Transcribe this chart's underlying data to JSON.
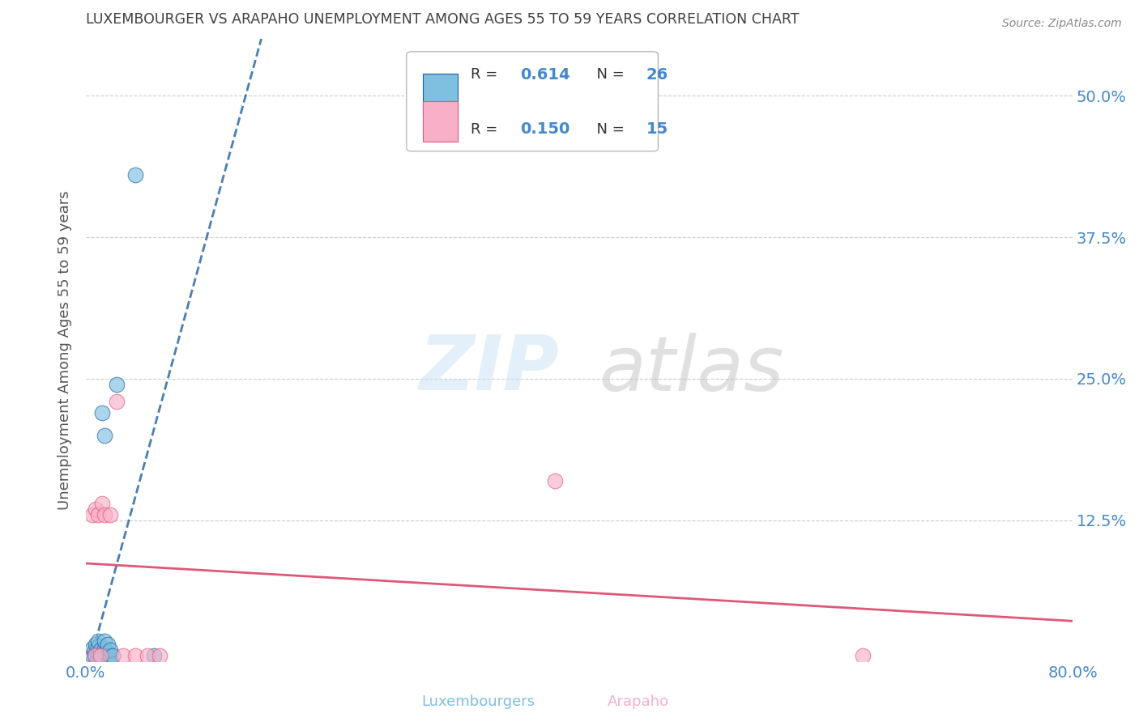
{
  "title": "LUXEMBOURGER VS ARAPAHO UNEMPLOYMENT AMONG AGES 55 TO 59 YEARS CORRELATION CHART",
  "source": "Source: ZipAtlas.com",
  "xlabel_label": "Luxembourgers",
  "xlabel2_label": "Arapaho",
  "ylabel": "Unemployment Among Ages 55 to 59 years",
  "xlim": [
    0.0,
    0.8
  ],
  "ylim": [
    0.0,
    0.55
  ],
  "xtick_vals": [
    0.0,
    0.8
  ],
  "xticklabels": [
    "0.0%",
    "80.0%"
  ],
  "ytick_vals": [
    0.125,
    0.25,
    0.375,
    0.5
  ],
  "yticklabels": [
    "12.5%",
    "25.0%",
    "37.5%",
    "50.0%"
  ],
  "blue_color": "#7fbfe0",
  "pink_color": "#f8b0c8",
  "trendline_blue": "#1a5fa0",
  "trendline_pink": "#e05878",
  "bg_color": "#ffffff",
  "title_color": "#404040",
  "source_color": "#888888",
  "axis_color": "#4488cc",
  "grid_color": "#cccccc",
  "legend_r_color": "#4488cc",
  "legend_text_color": "#333333",
  "blue_scatter_x": [
    0.005,
    0.005,
    0.007,
    0.007,
    0.008,
    0.008,
    0.01,
    0.01,
    0.01,
    0.012,
    0.012,
    0.013,
    0.013,
    0.015,
    0.015,
    0.015,
    0.015,
    0.017,
    0.018,
    0.018,
    0.02,
    0.02,
    0.022,
    0.025,
    0.04,
    0.055
  ],
  "blue_scatter_y": [
    0.005,
    0.012,
    0.005,
    0.01,
    0.005,
    0.015,
    0.005,
    0.013,
    0.018,
    0.005,
    0.01,
    0.005,
    0.22,
    0.008,
    0.012,
    0.018,
    0.2,
    0.008,
    0.005,
    0.015,
    0.005,
    0.01,
    0.005,
    0.245,
    0.43,
    0.005
  ],
  "pink_scatter_x": [
    0.005,
    0.007,
    0.008,
    0.01,
    0.012,
    0.013,
    0.015,
    0.02,
    0.025,
    0.03,
    0.04,
    0.05,
    0.06,
    0.38,
    0.63
  ],
  "pink_scatter_y": [
    0.13,
    0.005,
    0.135,
    0.13,
    0.005,
    0.14,
    0.13,
    0.13,
    0.23,
    0.005,
    0.005,
    0.005,
    0.005,
    0.16,
    0.005
  ]
}
